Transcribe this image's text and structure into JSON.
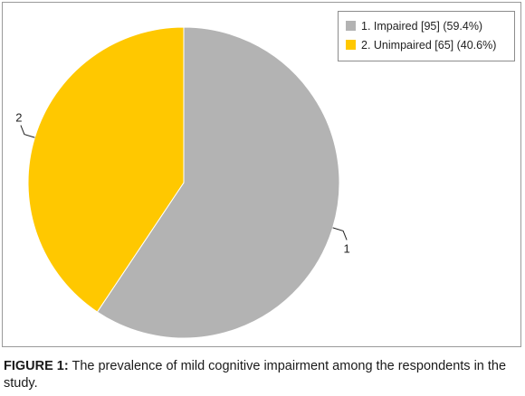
{
  "chart_data": {
    "type": "pie",
    "slices": [
      {
        "label": "1",
        "legend": "1. Impaired [95] (59.4%)",
        "value": 95,
        "percent": 59.4,
        "color": "#b3b3b3"
      },
      {
        "label": "2",
        "legend": "2. Unimpaired [65] (40.6%)",
        "value": 65,
        "percent": 40.6,
        "color": "#ffc800"
      }
    ],
    "start_angle_deg": 0,
    "direction": "clockwise",
    "legend_position": "top-right"
  },
  "caption": {
    "label": "FIGURE 1:",
    "text": " The prevalence of mild cognitive impairment among the respondents in the study."
  }
}
